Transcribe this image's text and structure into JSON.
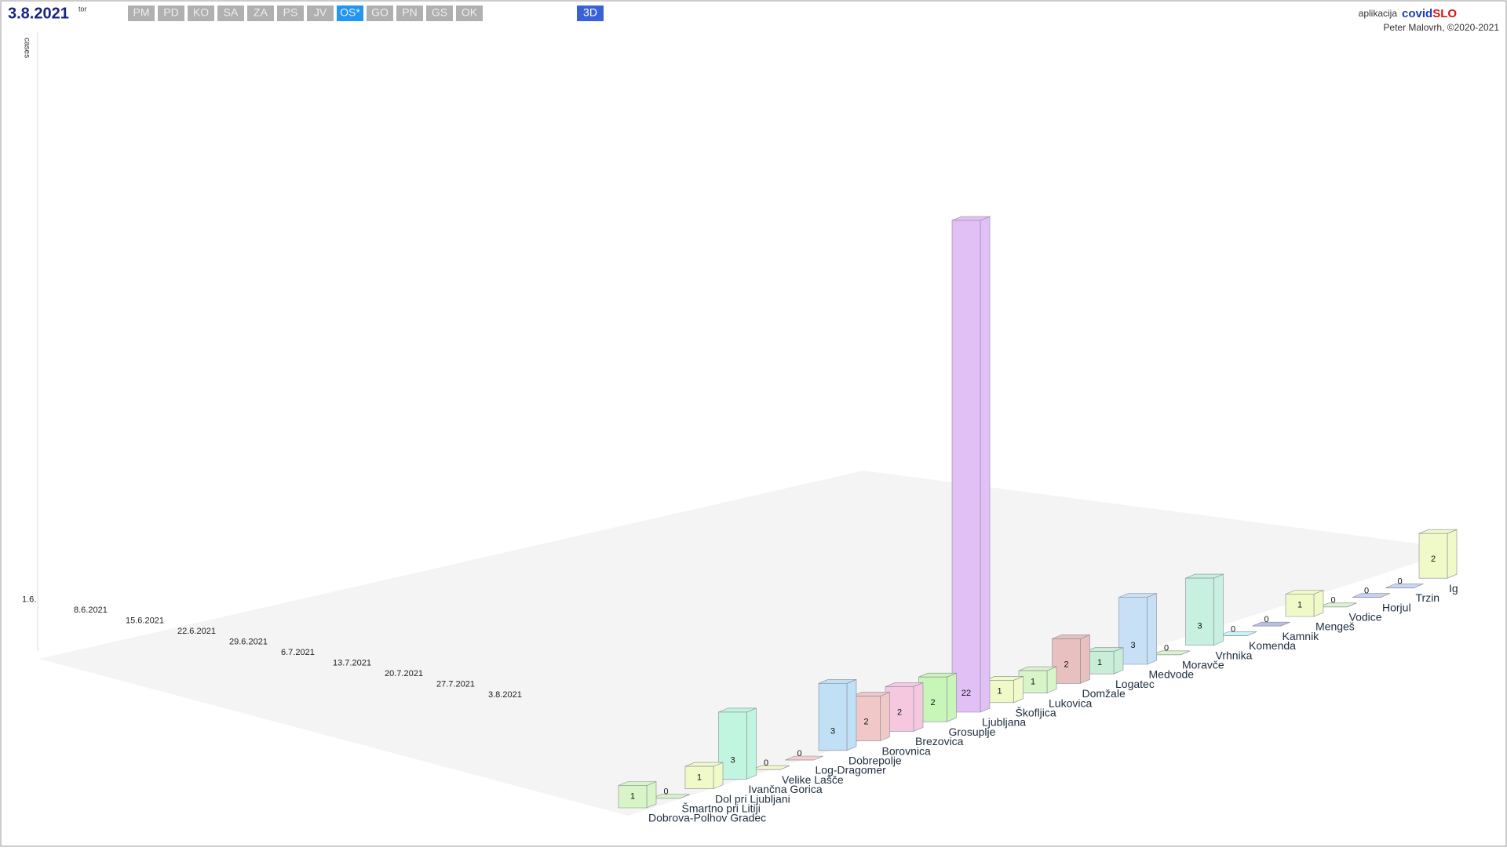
{
  "header": {
    "date": "3.8.2021",
    "weekday": "tor",
    "tabs": [
      "PM",
      "PD",
      "KO",
      "SA",
      "ZA",
      "PS",
      "JV",
      "OS*",
      "GO",
      "PN",
      "GS",
      "OK"
    ],
    "active": 7,
    "view_button": "3D",
    "app_prefix": "aplikacija",
    "app_name_a": "covid",
    "app_name_b": "SLO",
    "credit": "Peter Malovrh, ©2020-2021"
  },
  "chart_data": {
    "type": "bar3d",
    "y_label": "cases",
    "dates": [
      "1.6.",
      "8.6.2021",
      "15.6.2021",
      "22.6.2021",
      "29.6.2021",
      "6.7.2021",
      "13.7.2021",
      "20.7.2021",
      "27.7.2021",
      "3.8.2021"
    ],
    "categories": [
      "Dobrova-Polhov Gradec",
      "Šmartno pri Litiji",
      "Dol pri Ljubljani",
      "Ivančna Gorica",
      "Velike Lašče",
      "Log-Dragomer",
      "Dobrepolje",
      "Borovnica",
      "Brezovica",
      "Grosuplje",
      "Ljubljana",
      "Škofljica",
      "Lukovica",
      "Domžale",
      "Logatec",
      "Medvode",
      "Moravče",
      "Vrhnika",
      "Komenda",
      "Kamnik",
      "Mengeš",
      "Vodice",
      "Horjul",
      "Trzin",
      "Ig"
    ],
    "values": [
      1,
      0,
      1,
      3,
      0,
      0,
      3,
      2,
      2,
      2,
      22,
      1,
      1,
      2,
      1,
      3,
      0,
      3,
      0,
      0,
      1,
      0,
      0,
      0,
      2
    ],
    "colors": [
      "#d8f5c8",
      "#d8f5c8",
      "#f0fac8",
      "#c0f5e0",
      "#f0fac8",
      "#f5d0d0",
      "#c0e0f5",
      "#f0c8c8",
      "#f5c8e0",
      "#c8f5b8",
      "#e0c0f5",
      "#f0fac8",
      "#d8f5c8",
      "#e8c0c0",
      "#c8eed8",
      "#c8e0f5",
      "#d8f5c8",
      "#c8f0e0",
      "#c8f5f5",
      "#b8c0e0",
      "#f0fac8",
      "#d8f5c8",
      "#c8d0f5",
      "#c8d8f5",
      "#f0fac8"
    ]
  }
}
